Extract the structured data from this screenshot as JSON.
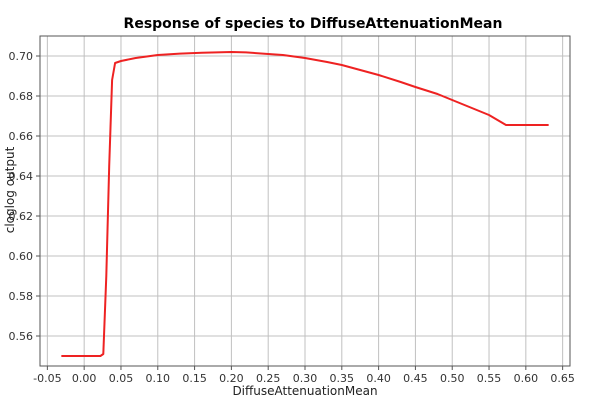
{
  "chart_data": {
    "type": "line",
    "title": "Response of species to DiffuseAttenuationMean",
    "xlabel": "DiffuseAttenuationMean",
    "ylabel": "cloglog output",
    "xlim": [
      -0.06,
      0.66
    ],
    "ylim": [
      0.545,
      0.71
    ],
    "x_ticks": [
      -0.05,
      0.0,
      0.05,
      0.1,
      0.15,
      0.2,
      0.25,
      0.3,
      0.35,
      0.4,
      0.45,
      0.5,
      0.55,
      0.6,
      0.65
    ],
    "x_tick_labels": [
      "-0.05",
      "0.00",
      "0.05",
      "0.10",
      "0.15",
      "0.20",
      "0.25",
      "0.30",
      "0.35",
      "0.40",
      "0.45",
      "0.50",
      "0.55",
      "0.60",
      "0.65"
    ],
    "y_ticks": [
      0.56,
      0.58,
      0.6,
      0.62,
      0.64,
      0.66,
      0.68,
      0.7
    ],
    "y_tick_labels": [
      "0.56",
      "0.58",
      "0.60",
      "0.62",
      "0.64",
      "0.66",
      "0.68",
      "0.70"
    ],
    "grid": true,
    "series": [
      {
        "color": "#ee2222",
        "x": [
          -0.03,
          0.022,
          0.026,
          0.03,
          0.034,
          0.038,
          0.042,
          0.05,
          0.07,
          0.1,
          0.13,
          0.16,
          0.2,
          0.22,
          0.25,
          0.27,
          0.3,
          0.33,
          0.35,
          0.38,
          0.4,
          0.43,
          0.45,
          0.48,
          0.5,
          0.53,
          0.55,
          0.573,
          0.6,
          0.63
        ],
        "y": [
          0.55,
          0.55,
          0.551,
          0.59,
          0.645,
          0.688,
          0.6965,
          0.6975,
          0.699,
          0.7005,
          0.7012,
          0.7016,
          0.702,
          0.7018,
          0.701,
          0.7005,
          0.699,
          0.697,
          0.6955,
          0.6925,
          0.6905,
          0.687,
          0.6845,
          0.681,
          0.678,
          0.6735,
          0.6705,
          0.6655,
          0.6655,
          0.6655
        ]
      }
    ]
  }
}
